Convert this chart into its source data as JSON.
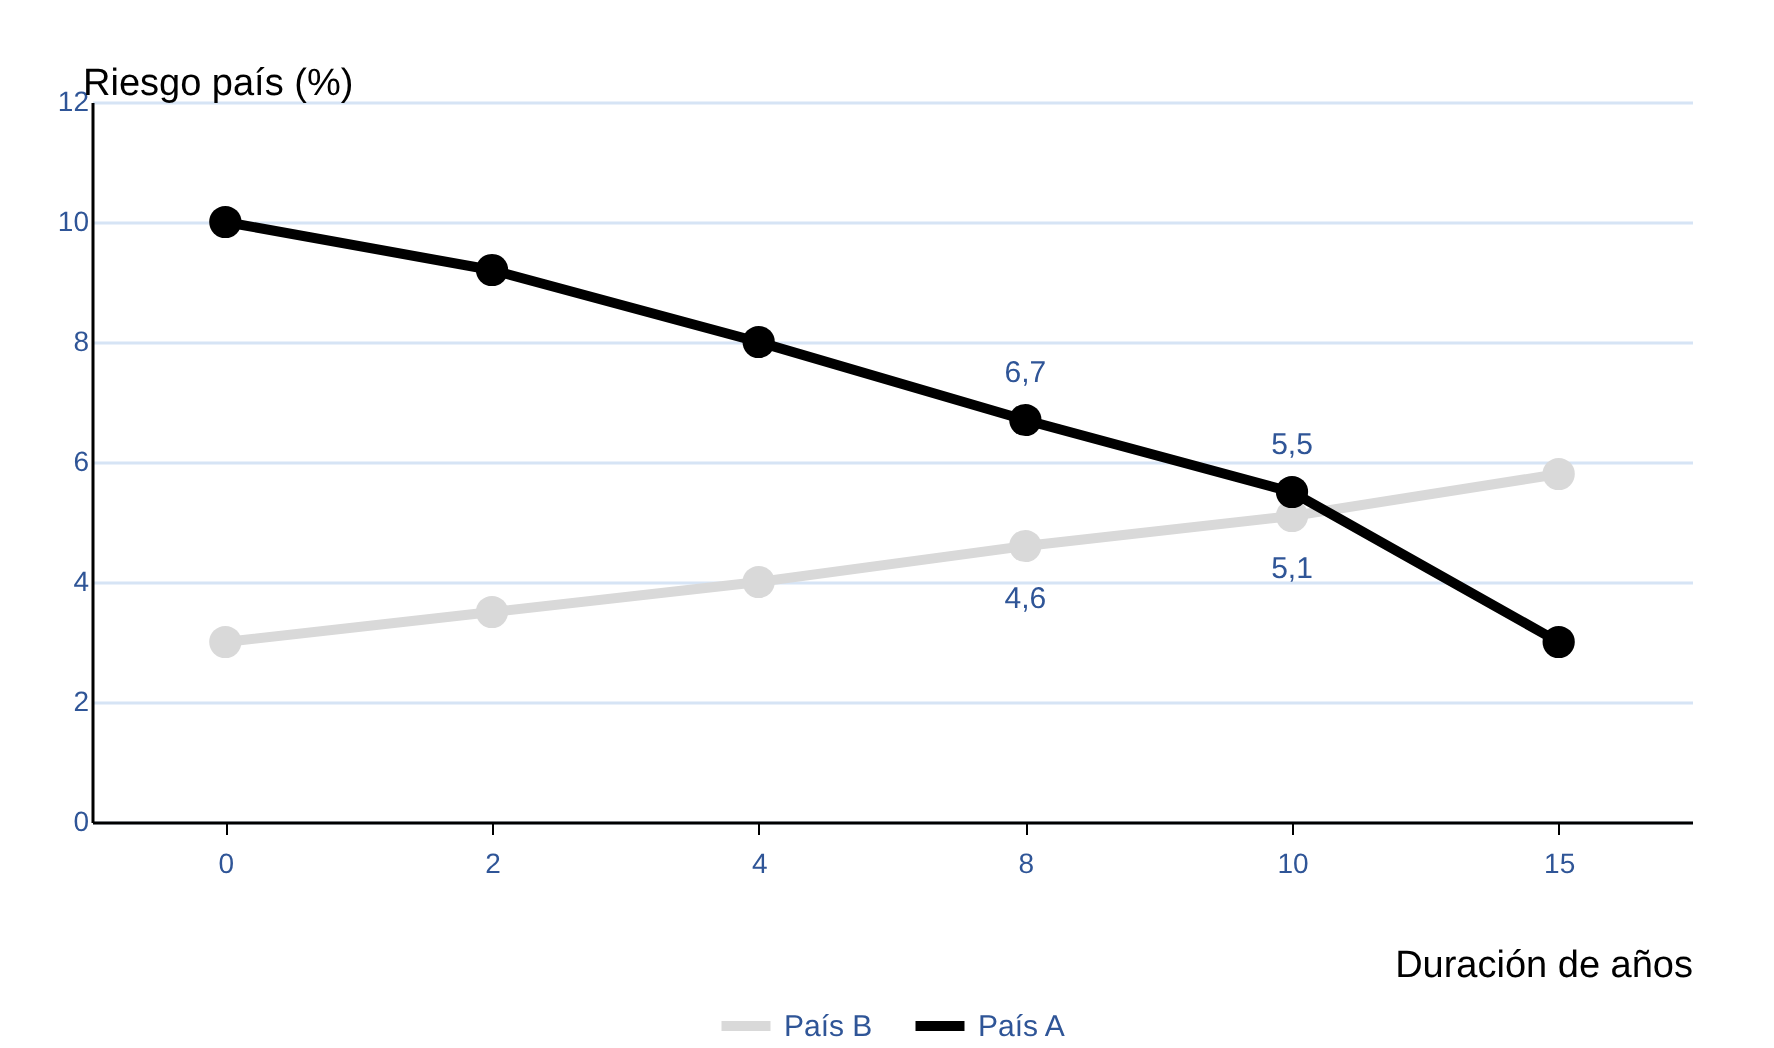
{
  "chart_data": {
    "type": "line",
    "xlabel": "Duración de años",
    "ylabel": "Riesgo país (%)",
    "categories": [
      "0",
      "2",
      "4",
      "8",
      "10",
      "15"
    ],
    "series": [
      {
        "name": "País B",
        "color": "#d9d9d9",
        "values": [
          3,
          3.5,
          4,
          4.6,
          5.1,
          5.8
        ],
        "value_labels": [
          null,
          null,
          null,
          "4,6",
          "5,1",
          null
        ]
      },
      {
        "name": "País A",
        "color": "#000000",
        "values": [
          10,
          9.2,
          8,
          6.7,
          5.5,
          3
        ],
        "value_labels": [
          null,
          null,
          null,
          "6,7",
          "5,5",
          null
        ]
      }
    ],
    "ylim": [
      0,
      12
    ],
    "yticks": [
      0,
      2,
      4,
      6,
      8,
      10,
      12
    ],
    "grid": "y",
    "legend": "bottom",
    "marker": "circle",
    "line_style": "solid"
  }
}
